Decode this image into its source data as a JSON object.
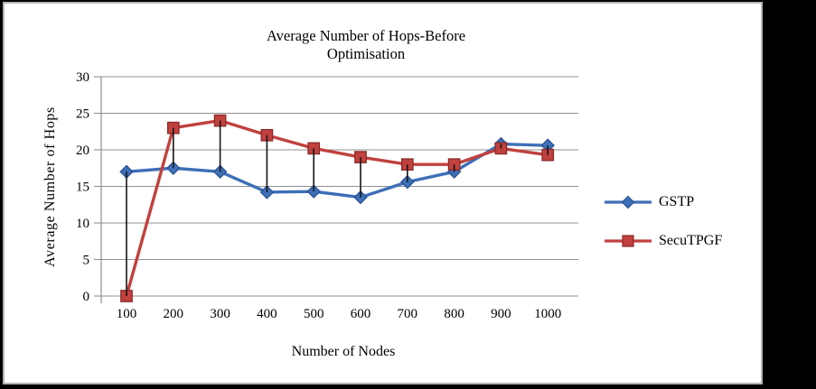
{
  "title": {
    "line1": "Average Number of Hops-Before",
    "line2": "Optimisation"
  },
  "axes": {
    "y_title": "Average Number of Hops",
    "x_title": "Number of Nodes"
  },
  "colors": {
    "gstp_line": "#3e6fb7",
    "gstp_marker_border": "#2a5391",
    "secutpgf_line": "#c0413e",
    "secutpgf_marker_border": "#8b2a28",
    "gridline": "#909090",
    "high_low_line": "#161616",
    "frame_background": "#000000",
    "panel_border": "#b4b4b4"
  },
  "chart_data": {
    "type": "line",
    "title": "Average Number of Hops-Before Optimisation",
    "xlabel": "Number of Nodes",
    "ylabel": "Average Number of Hops",
    "x": [
      100,
      200,
      300,
      400,
      500,
      600,
      700,
      800,
      900,
      1000
    ],
    "series": [
      {
        "name": "GSTP",
        "marker": "diamond",
        "color": "#3e6fb7",
        "border": "#2a5391",
        "values": [
          17,
          17.5,
          17,
          14.2,
          14.3,
          13.5,
          15.6,
          17,
          20.8,
          20.6
        ]
      },
      {
        "name": "SecuTPGF",
        "marker": "square",
        "color": "#c0413e",
        "border": "#8b2a28",
        "values": [
          0,
          23,
          24,
          22,
          20.2,
          19,
          18,
          18,
          20.2,
          19.3
        ]
      }
    ],
    "ylim": [
      0,
      30
    ],
    "ytick_step": 5,
    "yticks": [
      0,
      5,
      10,
      15,
      20,
      25,
      30
    ],
    "grid": true,
    "high_low_lines": true,
    "legend_position": "right"
  }
}
